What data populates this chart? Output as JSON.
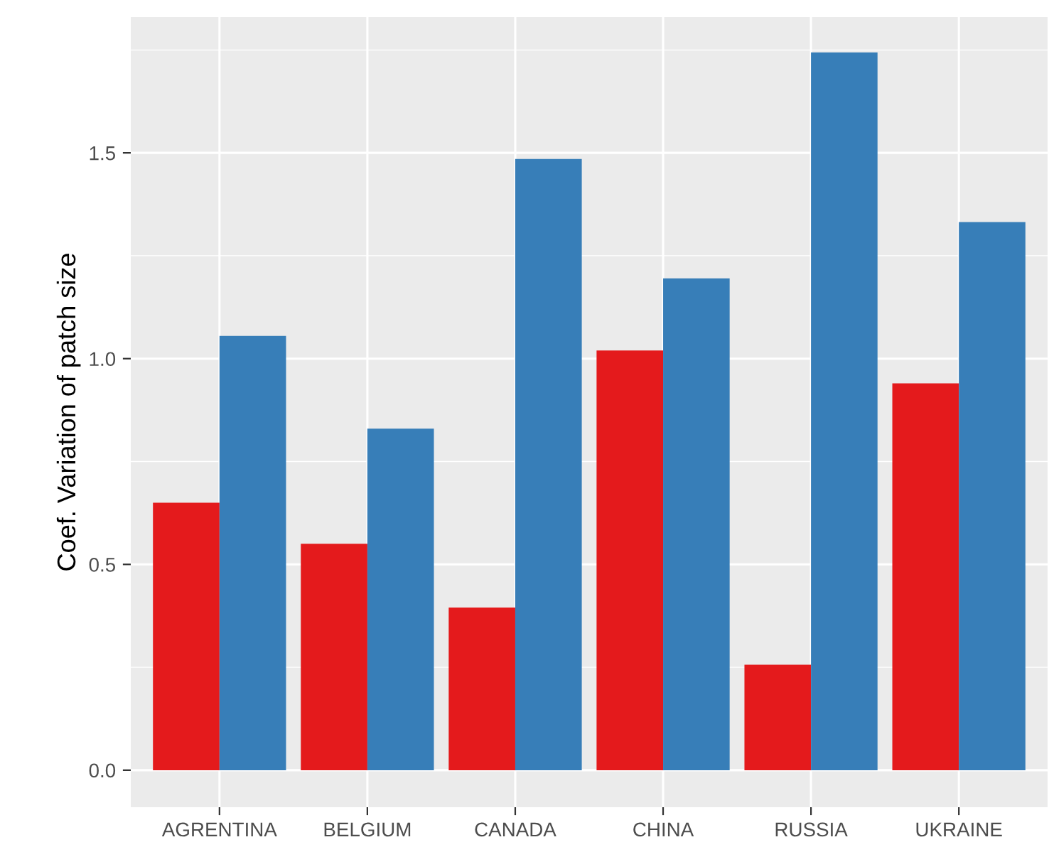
{
  "chart_data": {
    "type": "bar",
    "ylabel": "Coef. Variation of patch size",
    "categories": [
      "AGRENTINA",
      "BELGIUM",
      "CANADA",
      "CHINA",
      "RUSSIA",
      "UKRAINE"
    ],
    "series": [
      {
        "color": "#e41a1c",
        "values": [
          0.65,
          0.55,
          0.395,
          1.02,
          0.256,
          0.94
        ]
      },
      {
        "color": "#377eb8",
        "values": [
          1.055,
          0.83,
          1.485,
          1.195,
          1.744,
          1.332
        ]
      }
    ],
    "ylim": [
      -0.09,
      1.83
    ],
    "yticks": [
      {
        "value": 0,
        "label": "0.0"
      },
      0.5,
      {
        "value": 1,
        "label": "1.0"
      },
      1.5
    ],
    "grid": true
  }
}
